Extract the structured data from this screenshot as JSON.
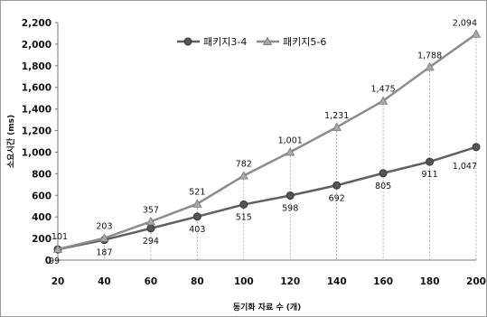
{
  "chart_data": {
    "type": "line",
    "title": "",
    "xlabel": "동기화 자료 수 (개)",
    "ylabel": "소요시간 (ms)",
    "x": [
      20,
      40,
      60,
      80,
      100,
      120,
      140,
      160,
      180,
      200
    ],
    "xlim": [
      20,
      200
    ],
    "ylim": [
      0,
      2200
    ],
    "y_ticks": [
      0,
      200,
      400,
      600,
      800,
      1000,
      1200,
      1400,
      1600,
      1800,
      2000,
      2200
    ],
    "y_tick_labels": [
      "0",
      "200",
      "400",
      "600",
      "800",
      "1,000",
      "1,200",
      "1,400",
      "1,600",
      "1,800",
      "2,000",
      "2,200"
    ],
    "legend": "top-center",
    "vertical_drop_lines": true,
    "series": [
      {
        "name": "패키지3-4",
        "marker": "circle",
        "color": "#606060",
        "values": [
          99,
          187,
          294,
          403,
          515,
          598,
          692,
          805,
          911,
          1047
        ],
        "labels": [
          "99",
          "187",
          "294",
          "403",
          "515",
          "598",
          "692",
          "805",
          "911",
          "1,047"
        ]
      },
      {
        "name": "패키지5-6",
        "marker": "triangle",
        "color": "#8c8c8c",
        "values": [
          101,
          203,
          357,
          521,
          782,
          1001,
          1231,
          1475,
          1788,
          2094
        ],
        "labels": [
          "101",
          "203",
          "357",
          "521",
          "782",
          "1,001",
          "1,231",
          "1,475",
          "1,788",
          "2,094"
        ]
      }
    ]
  }
}
